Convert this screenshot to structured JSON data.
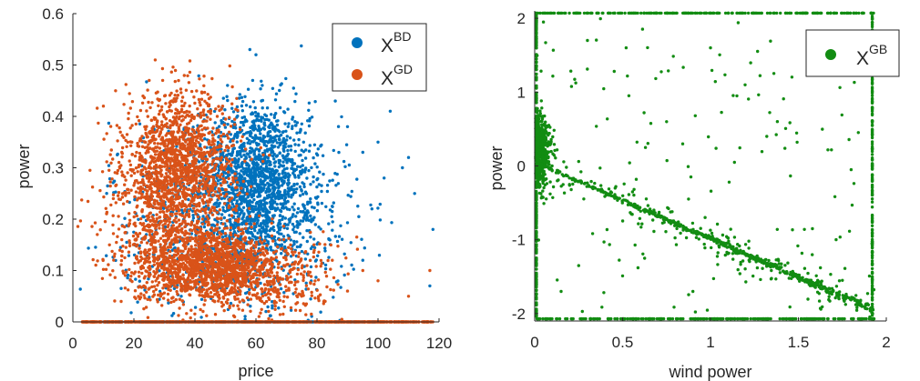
{
  "chart_data": [
    {
      "type": "scatter",
      "xlabel": "price",
      "ylabel": "power",
      "xlim": [
        0,
        120
      ],
      "ylim": [
        0,
        0.6
      ],
      "xticks": [
        0,
        20,
        40,
        60,
        80,
        100,
        120
      ],
      "yticks": [
        0,
        0.1,
        0.2,
        0.3,
        0.4,
        0.5,
        0.6
      ],
      "xtick_labels": [
        "0",
        "20",
        "40",
        "60",
        "80",
        "100",
        "120"
      ],
      "ytick_labels": [
        "0",
        "0.1",
        "0.2",
        "0.3",
        "0.4",
        "0.5",
        "0.6"
      ],
      "legend_position": "top-right",
      "series": [
        {
          "name": "BD",
          "legend_base": "X",
          "legend_sup": "BD",
          "color": "#0072BD",
          "clusters": [
            {
              "cx": 60,
              "cy": 0.28,
              "sx": 9,
              "sy": 0.075,
              "n": 1400
            },
            {
              "cx": 70,
              "cy": 0.2,
              "sx": 12,
              "sy": 0.08,
              "n": 350
            },
            {
              "cx": 40,
              "cy": 0.22,
              "sx": 14,
              "sy": 0.09,
              "n": 400
            },
            {
              "cx": 50,
              "cy": 0.12,
              "sx": 14,
              "sy": 0.05,
              "n": 250
            }
          ],
          "baseline": {
            "y": 0,
            "xmin": 10,
            "xmax": 100,
            "n": 300
          },
          "sparse_points": [
            [
              100,
              0.35
            ],
            [
              104,
              0.41
            ],
            [
              112,
              0.25
            ],
            [
              118,
              0.18
            ],
            [
              117,
              0.07
            ],
            [
              95,
              0.33
            ],
            [
              102,
              0.28
            ],
            [
              108,
              0.3
            ],
            [
              86,
              0.43
            ],
            [
              95,
              0.12
            ],
            [
              58,
              0.53
            ],
            [
              60,
              0.52
            ],
            [
              90,
              0.38
            ],
            [
              110,
              0.32
            ],
            [
              98,
              0.22
            ]
          ]
        },
        {
          "name": "GD",
          "legend_base": "X",
          "legend_sup": "GD",
          "color": "#D95319",
          "clusters": [
            {
              "cx": 35,
              "cy": 0.3,
              "sx": 9,
              "sy": 0.07,
              "n": 1500
            },
            {
              "cx": 45,
              "cy": 0.11,
              "sx": 12,
              "sy": 0.035,
              "n": 1400
            },
            {
              "cx": 28,
              "cy": 0.2,
              "sx": 9,
              "sy": 0.08,
              "n": 400
            },
            {
              "cx": 65,
              "cy": 0.08,
              "sx": 12,
              "sy": 0.04,
              "n": 300
            }
          ],
          "baseline": {
            "y": 0,
            "xmin": 3,
            "xmax": 118,
            "n": 700
          },
          "sparse_points": [
            [
              117,
              0.1
            ],
            [
              110,
              0.05
            ],
            [
              100,
              0.08
            ],
            [
              95,
              0.1
            ],
            [
              14,
              0.45
            ],
            [
              10,
              0.42
            ],
            [
              8,
              0.17
            ],
            [
              12,
              0.15
            ],
            [
              25,
              0.47
            ],
            [
              18,
              0.35
            ],
            [
              85,
              0.12
            ],
            [
              90,
              0.06
            ]
          ]
        }
      ]
    },
    {
      "type": "scatter",
      "xlabel": "wind power",
      "ylabel": "power",
      "xlim": [
        0,
        2
      ],
      "ylim": [
        -2.1,
        2.1
      ],
      "xticks": [
        0,
        0.5,
        1,
        1.5,
        2
      ],
      "yticks": [
        -2,
        -1,
        0,
        1,
        2
      ],
      "xtick_labels": [
        "0",
        "0.5",
        "1",
        "1.5",
        "2"
      ],
      "ytick_labels": [
        "-2",
        "-1",
        "0",
        "1",
        "2"
      ],
      "legend_position": "top-right",
      "series": [
        {
          "name": "GB",
          "legend_base": "X",
          "legend_sup": "GB",
          "color": "#128C12",
          "diagonal_band": {
            "x0": 0.05,
            "y0": 0,
            "x1": 1.93,
            "y1": -1.95,
            "n": 700,
            "spread": 0.05
          },
          "top_edge": {
            "y": 2.07,
            "xmin": 0,
            "xmax": 1.93,
            "n": 250
          },
          "bottom_edge": {
            "y": -2.07,
            "xmin": 0,
            "xmax": 1.93,
            "n": 250
          },
          "left_edge": {
            "x": 0.01,
            "ymin": -2.05,
            "ymax": 2.05,
            "n": 250
          },
          "right_edge": {
            "x": 1.92,
            "ymin": -2.05,
            "ymax": 2.05,
            "n": 200
          },
          "origin_cluster": {
            "cx": 0.03,
            "cy": 0.2,
            "sx": 0.04,
            "sy": 0.25,
            "n": 500
          },
          "scatter": {
            "n": 140,
            "xmin": 0,
            "xmax": 1.93,
            "ymin": -2,
            "ymax": 2
          },
          "sparse_points": [
            [
              0.05,
              1.95
            ],
            [
              0.3,
              1.7
            ],
            [
              0.52,
              1.6
            ],
            [
              1.0,
              1.6
            ],
            [
              1.55,
              1.5
            ],
            [
              1.15,
              0.95
            ],
            [
              1.32,
              0.4
            ],
            [
              0.63,
              0.25
            ],
            [
              0.75,
              0.6
            ],
            [
              1.8,
              -0.05
            ],
            [
              0.55,
              -0.65
            ],
            [
              0.15,
              -1.7
            ],
            [
              0.25,
              -1.35
            ],
            [
              0.9,
              -1.7
            ],
            [
              1.05,
              -1.1
            ]
          ]
        }
      ]
    }
  ]
}
